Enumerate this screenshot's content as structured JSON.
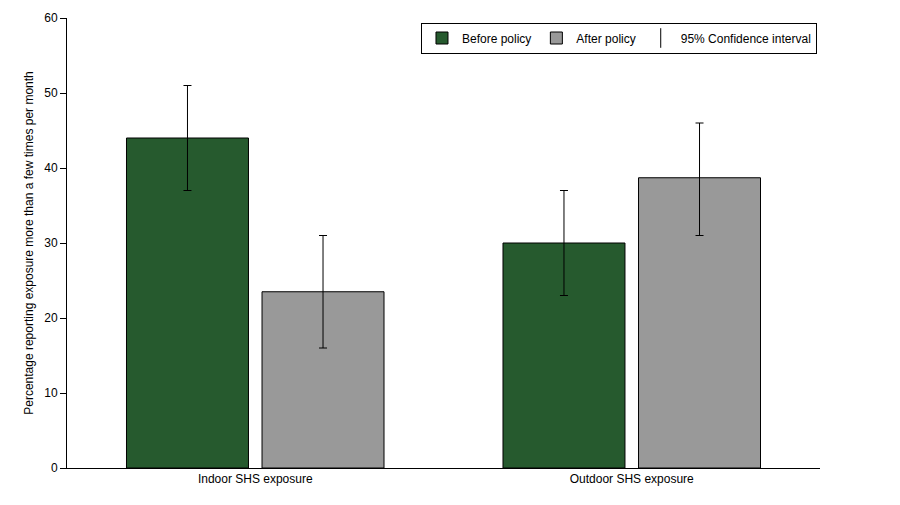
{
  "chart_data": {
    "type": "bar",
    "y_label": "Percentage reporting exposure more than a few times per month",
    "categories": [
      "Indoor SHS exposure",
      "Outdoor SHS exposure"
    ],
    "series": [
      {
        "name": "Before policy",
        "color": "#265a2e",
        "values": [
          44,
          30
        ],
        "ci_low": [
          37,
          23
        ],
        "ci_high": [
          51,
          37
        ]
      },
      {
        "name": "After policy",
        "color": "#999999",
        "values": [
          23.5,
          38.7
        ],
        "ci_low": [
          16,
          31
        ],
        "ci_high": [
          31,
          46
        ]
      }
    ],
    "error_bar_label": "95% Confidence interval",
    "ylim": [
      0,
      60
    ],
    "yticks": [
      0,
      10,
      20,
      30,
      40,
      50,
      60
    ],
    "grid": false,
    "legend": "top right"
  }
}
